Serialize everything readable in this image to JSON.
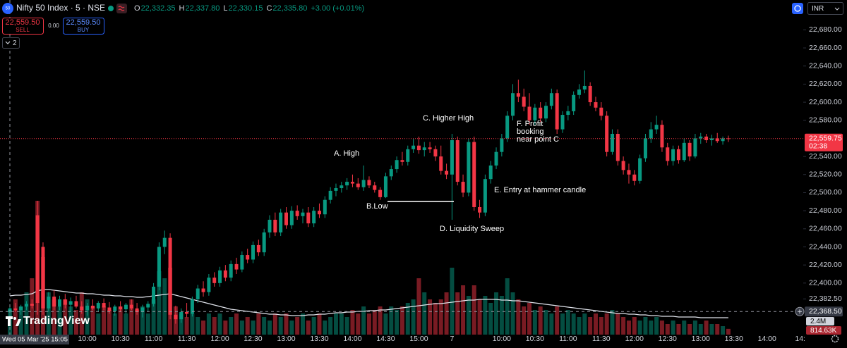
{
  "chart_data": {
    "type": "candlestick",
    "symbol": "Nifty 50 Index · 5 · NSE",
    "symbol_badge": "50",
    "ohlc_legend": [
      {
        "label": "O",
        "value": "22,332.35"
      },
      {
        "label": "H",
        "value": "22,337.80"
      },
      {
        "label": "L",
        "value": "22,330.15"
      },
      {
        "label": "C",
        "value": "22,335.80"
      }
    ],
    "change": "+3.00 (+0.01%)",
    "sell": {
      "price": "22,559.50",
      "label": "SELL"
    },
    "spread": "0.00",
    "buy": {
      "price": "22,559.50",
      "label": "BUY"
    },
    "indicator_count": "2",
    "currency": "INR",
    "logo_text": "TradingView",
    "crosshair_time": "Wed 05 Mar '25  15:05",
    "crosshair_price": {
      "value": 22368.5,
      "label": "22,368.50"
    },
    "current_price": {
      "value": 22559.75,
      "label": "22,559.75",
      "countdown": "02:38"
    },
    "volume_legend": {
      "ma": "2.4M",
      "last": "814.63K"
    },
    "up_color": "#089981",
    "down_color": "#f23645",
    "grid": false,
    "ylim": [
      22343,
      22713
    ],
    "volume_lim": [
      0,
      47.5
    ],
    "yticks": [
      {
        "value": 22680,
        "label": "22,680.00"
      },
      {
        "value": 22660,
        "label": "22,660.00"
      },
      {
        "value": 22640,
        "label": "22,640.00"
      },
      {
        "value": 22620,
        "label": "22,620.00"
      },
      {
        "value": 22600,
        "label": "22,600.00"
      },
      {
        "value": 22580,
        "label": "22,580.00"
      },
      {
        "value": 22540,
        "label": "22,540.00"
      },
      {
        "value": 22520,
        "label": "22,520.00"
      },
      {
        "value": 22500,
        "label": "22,500.00"
      },
      {
        "value": 22480,
        "label": "22,480.00"
      },
      {
        "value": 22460,
        "label": "22,460.00"
      },
      {
        "value": 22440,
        "label": "22,440.00"
      },
      {
        "value": 22420,
        "label": "22,420.00"
      },
      {
        "value": 22400,
        "label": "22,400.00"
      },
      {
        "value": 22382.5,
        "label": "22,382.50"
      }
    ],
    "annotations": [
      {
        "text": "A. High"
      },
      {
        "text": "B.Low"
      },
      {
        "text": "C. Higher High"
      },
      {
        "text": "D. Liquidity Sweep"
      },
      {
        "text": "E. Entry at hammer candle"
      },
      {
        "lines": [
          "F. Profit",
          "booking",
          "near point C"
        ]
      }
    ],
    "categories": [
      null,
      null,
      null,
      null,
      null,
      null,
      null,
      null,
      null,
      null,
      null,
      null,
      null,
      null,
      "10:00",
      null,
      null,
      null,
      null,
      null,
      "10:30",
      null,
      null,
      null,
      null,
      null,
      "11:00",
      null,
      null,
      null,
      null,
      null,
      "11:30",
      null,
      null,
      null,
      null,
      null,
      "12:00",
      null,
      null,
      null,
      null,
      null,
      "12:30",
      null,
      null,
      null,
      null,
      null,
      "13:00",
      null,
      null,
      null,
      null,
      null,
      "13:30",
      null,
      null,
      null,
      null,
      null,
      "14:00",
      null,
      null,
      null,
      null,
      null,
      "14:30",
      null,
      null,
      null,
      null,
      null,
      "15:00",
      null,
      null,
      null,
      null,
      null,
      "7",
      null,
      null,
      null,
      null,
      null,
      null,
      null,
      null,
      "10:00",
      null,
      null,
      null,
      null,
      null,
      "10:30",
      null,
      null,
      null,
      null,
      null,
      "11:00",
      null,
      null,
      null,
      null,
      null,
      "11:30",
      null,
      null,
      null,
      null,
      null,
      "12:00",
      null,
      null,
      null,
      null,
      null,
      "12:30",
      null,
      null,
      null,
      null,
      null,
      "13:00",
      null,
      null,
      null,
      null,
      null,
      "13:30",
      null,
      null,
      null,
      null,
      null,
      "14:00",
      null,
      null,
      null,
      null,
      null,
      "14:"
    ],
    "open": [
      22368,
      22372,
      22370,
      22374,
      22377,
      22475,
      22440,
      22372,
      22385,
      22374,
      22382,
      22376,
      22380,
      22374,
      22370,
      22375,
      22372,
      22378,
      22373,
      22369,
      22374,
      22371,
      22376,
      22372,
      22368,
      22373,
      22377,
      22396,
      22440,
      22450,
      22365,
      22360,
      22368,
      22366,
      22382,
      22394,
      22390,
      22406,
      22400,
      22414,
      22406,
      22421,
      22415,
      22431,
      22426,
      22442,
      22434,
      22456,
      22470,
      22456,
      22478,
      22464,
      22480,
      22474,
      22478,
      22466,
      22480,
      22476,
      22492,
      22502,
      22505,
      22508,
      22512,
      22510,
      22506,
      22514,
      22508,
      22503,
      22495,
      22518,
      22526,
      22536,
      22534,
      22548,
      22552,
      22547,
      22550,
      22548,
      22540,
      22524,
      22520,
      22558,
      22512,
      22500,
      22556,
      22484,
      22478,
      22515,
      22530,
      22545,
      22560,
      22585,
      22610,
      22606,
      22595,
      22580,
      22594,
      22582,
      22596,
      22610,
      22570,
      22586,
      22590,
      22608,
      22614,
      22618,
      22600,
      22594,
      22585,
      22545,
      22565,
      22535,
      22525,
      22520,
      22513,
      22538,
      22560,
      22570,
      22575,
      22550,
      22535,
      22548,
      22536,
      22555,
      22540,
      22560,
      22562,
      22558,
      22560,
      22557,
      22560,
      null,
      null,
      null,
      null,
      null,
      null,
      null,
      null,
      null,
      null,
      null,
      null,
      null
    ],
    "high": [
      22374,
      22378,
      22376,
      22380,
      22382,
      22491,
      22445,
      22390,
      22392,
      22386,
      22388,
      22384,
      22386,
      22380,
      22378,
      22382,
      22380,
      22383,
      22379,
      22376,
      22380,
      22378,
      22382,
      22378,
      22376,
      22380,
      22400,
      22445,
      22458,
      22455,
      22375,
      22372,
      22378,
      22385,
      22398,
      22402,
      22410,
      22412,
      22418,
      22420,
      22425,
      22428,
      22435,
      22438,
      22446,
      22448,
      22460,
      22475,
      22478,
      22482,
      22484,
      22485,
      22486,
      22482,
      22484,
      22484,
      22488,
      22496,
      22506,
      22510,
      22512,
      22516,
      22520,
      22516,
      22530,
      22518,
      22512,
      22506,
      22522,
      22530,
      22540,
      22545,
      22552,
      22560,
      22562,
      22556,
      22556,
      22552,
      22552,
      22532,
      22565,
      22562,
      22520,
      22560,
      22562,
      22492,
      22520,
      22535,
      22550,
      22565,
      22590,
      22620,
      22625,
      22615,
      22610,
      22598,
      22600,
      22600,
      22615,
      22614,
      22590,
      22596,
      22612,
      22620,
      22635,
      22622,
      22606,
      22600,
      22590,
      22570,
      22570,
      22540,
      22532,
      22525,
      22542,
      22565,
      22578,
      22585,
      22580,
      22555,
      22552,
      22552,
      22560,
      22558,
      22565,
      22566,
      22565,
      22564,
      22566,
      22562,
      22563,
      null,
      null,
      null,
      null,
      null,
      null,
      null,
      null,
      null,
      null,
      null,
      null,
      null
    ],
    "low": [
      22362,
      22368,
      22365,
      22370,
      22372,
      22365,
      22365,
      22368,
      22370,
      22370,
      22372,
      22368,
      22372,
      22366,
      22364,
      22370,
      22368,
      22370,
      22366,
      22364,
      22368,
      22366,
      22370,
      22365,
      22362,
      22369,
      22374,
      22392,
      22432,
      22360,
      22355,
      22356,
      22362,
      22363,
      22378,
      22385,
      22386,
      22396,
      22396,
      22402,
      22402,
      22410,
      22412,
      22422,
      22422,
      22430,
      22430,
      22450,
      22452,
      22452,
      22460,
      22460,
      22470,
      22466,
      22462,
      22462,
      22472,
      22472,
      22488,
      22496,
      22500,
      22503,
      22506,
      22503,
      22502,
      22505,
      22500,
      22492,
      22494,
      22514,
      22522,
      22530,
      22530,
      22544,
      22543,
      22540,
      22544,
      22535,
      22520,
      22515,
      22470,
      22508,
      22495,
      22496,
      22480,
      22472,
      22474,
      22510,
      22526,
      22540,
      22556,
      22580,
      22600,
      22590,
      22575,
      22575,
      22578,
      22578,
      22592,
      22565,
      22566,
      22580,
      22586,
      22604,
      22610,
      22596,
      22590,
      22580,
      22540,
      22542,
      22530,
      22520,
      22510,
      22508,
      22510,
      22534,
      22555,
      22565,
      22545,
      22530,
      22530,
      22532,
      22534,
      22535,
      22538,
      22554,
      22555,
      22552,
      22555,
      22553,
      22556,
      null,
      null,
      null,
      null,
      null,
      null,
      null,
      null,
      null,
      null,
      null,
      null,
      null
    ],
    "close": [
      22372,
      22370,
      22374,
      22377,
      22375,
      22378,
      22372,
      22385,
      22374,
      22382,
      22376,
      22380,
      22374,
      22370,
      22375,
      22372,
      22378,
      22373,
      22369,
      22374,
      22371,
      22376,
      22372,
      22368,
      22373,
      22377,
      22396,
      22440,
      22450,
      22365,
      22360,
      22368,
      22366,
      22382,
      22394,
      22390,
      22406,
      22400,
      22414,
      22406,
      22421,
      22415,
      22431,
      22426,
      22442,
      22434,
      22456,
      22470,
      22456,
      22478,
      22464,
      22480,
      22474,
      22478,
      22466,
      22480,
      22476,
      22492,
      22502,
      22505,
      22508,
      22512,
      22510,
      22506,
      22514,
      22508,
      22503,
      22495,
      22518,
      22526,
      22536,
      22534,
      22548,
      22552,
      22547,
      22550,
      22548,
      22540,
      22524,
      22520,
      22558,
      22512,
      22500,
      22556,
      22484,
      22478,
      22515,
      22530,
      22545,
      22560,
      22585,
      22610,
      22606,
      22595,
      22580,
      22594,
      22582,
      22596,
      22610,
      22570,
      22586,
      22590,
      22608,
      22614,
      22618,
      22600,
      22594,
      22585,
      22545,
      22565,
      22535,
      22525,
      22520,
      22513,
      22538,
      22560,
      22570,
      22575,
      22550,
      22535,
      22548,
      22536,
      22555,
      22540,
      22560,
      22562,
      22558,
      22560,
      22557,
      22560,
      22559.75,
      null,
      null,
      null,
      null,
      null,
      null,
      null,
      null,
      null,
      null,
      null,
      null,
      null
    ],
    "volume": [
      3.5,
      5,
      4,
      6,
      8,
      19,
      11,
      6,
      5,
      4,
      5,
      4,
      3.5,
      6,
      5,
      4,
      3,
      4,
      3.5,
      3,
      4,
      3,
      5,
      3.5,
      4,
      3,
      5,
      9,
      8,
      9.5,
      4,
      3,
      2.5,
      3,
      2.5,
      2,
      3,
      2.5,
      3,
      2,
      2.5,
      3,
      2,
      2.5,
      2,
      3,
      2.5,
      2,
      3,
      2.5,
      3,
      2,
      2.5,
      3,
      2,
      2.5,
      3,
      2,
      2.5,
      3,
      3,
      2.5,
      3.5,
      3,
      4,
      3,
      3.5,
      4,
      3,
      4,
      3.5,
      4,
      4.5,
      5,
      8,
      6,
      5,
      4.5,
      5,
      6,
      9.5,
      6,
      7,
      5.5,
      7,
      5,
      5.5,
      4.5,
      6,
      5.5,
      8,
      6,
      5,
      4,
      4.5,
      3.5,
      4,
      3.5,
      3,
      4,
      3,
      3.5,
      3,
      2.5,
      3,
      2.5,
      3,
      2.5,
      3,
      3.5,
      3,
      2.5,
      2,
      2.5,
      2,
      2.5,
      2,
      2.5,
      2,
      1.5,
      2,
      1.5,
      2,
      1.5,
      2,
      1.5,
      2,
      1.5,
      1.5,
      1.2,
      0.81463,
      null,
      null,
      null,
      null,
      null,
      null,
      null,
      null,
      null,
      null,
      null,
      null,
      null
    ],
    "volume_ma": [
      5.5,
      5.6,
      5.6,
      5.7,
      5.8,
      6.2,
      6.4,
      6.4,
      6.3,
      6.2,
      6.1,
      6.0,
      5.9,
      5.9,
      5.8,
      5.8,
      5.7,
      5.6,
      5.6,
      5.5,
      5.5,
      5.4,
      5.4,
      5.3,
      5.3,
      5.4,
      5.5,
      5.6,
      5.7,
      5.8,
      5.6,
      5.4,
      5.2,
      5.0,
      4.8,
      4.6,
      4.4,
      4.2,
      4.0,
      3.8,
      3.6,
      3.5,
      3.4,
      3.3,
      3.2,
      3.1,
      3.0,
      2.9,
      2.9,
      2.8,
      2.8,
      2.7,
      2.7,
      2.7,
      2.8,
      2.8,
      2.9,
      2.9,
      3.0,
      3.1,
      3.1,
      3.2,
      3.2,
      3.3,
      3.3,
      3.4,
      3.4,
      3.5,
      3.5,
      3.6,
      3.7,
      3.8,
      3.9,
      4.0,
      4.1,
      4.2,
      4.3,
      4.4,
      4.4,
      4.5,
      4.6,
      4.7,
      4.8,
      4.9,
      4.9,
      5.0,
      5.0,
      5.0,
      5.0,
      4.9,
      4.9,
      4.8,
      4.8,
      4.7,
      4.6,
      4.5,
      4.4,
      4.3,
      4.2,
      4.1,
      4.0,
      3.9,
      3.8,
      3.7,
      3.6,
      3.5,
      3.4,
      3.3,
      3.2,
      3.1,
      3.0,
      3.0,
      2.9,
      2.9,
      2.8,
      2.8,
      2.7,
      2.7,
      2.6,
      2.6,
      2.6,
      2.5,
      2.5,
      2.5,
      2.5,
      2.4,
      2.4,
      2.4,
      2.4,
      2.4,
      2.4,
      null,
      null,
      null,
      null,
      null,
      null,
      null,
      null,
      null,
      null,
      null,
      null,
      null
    ]
  }
}
